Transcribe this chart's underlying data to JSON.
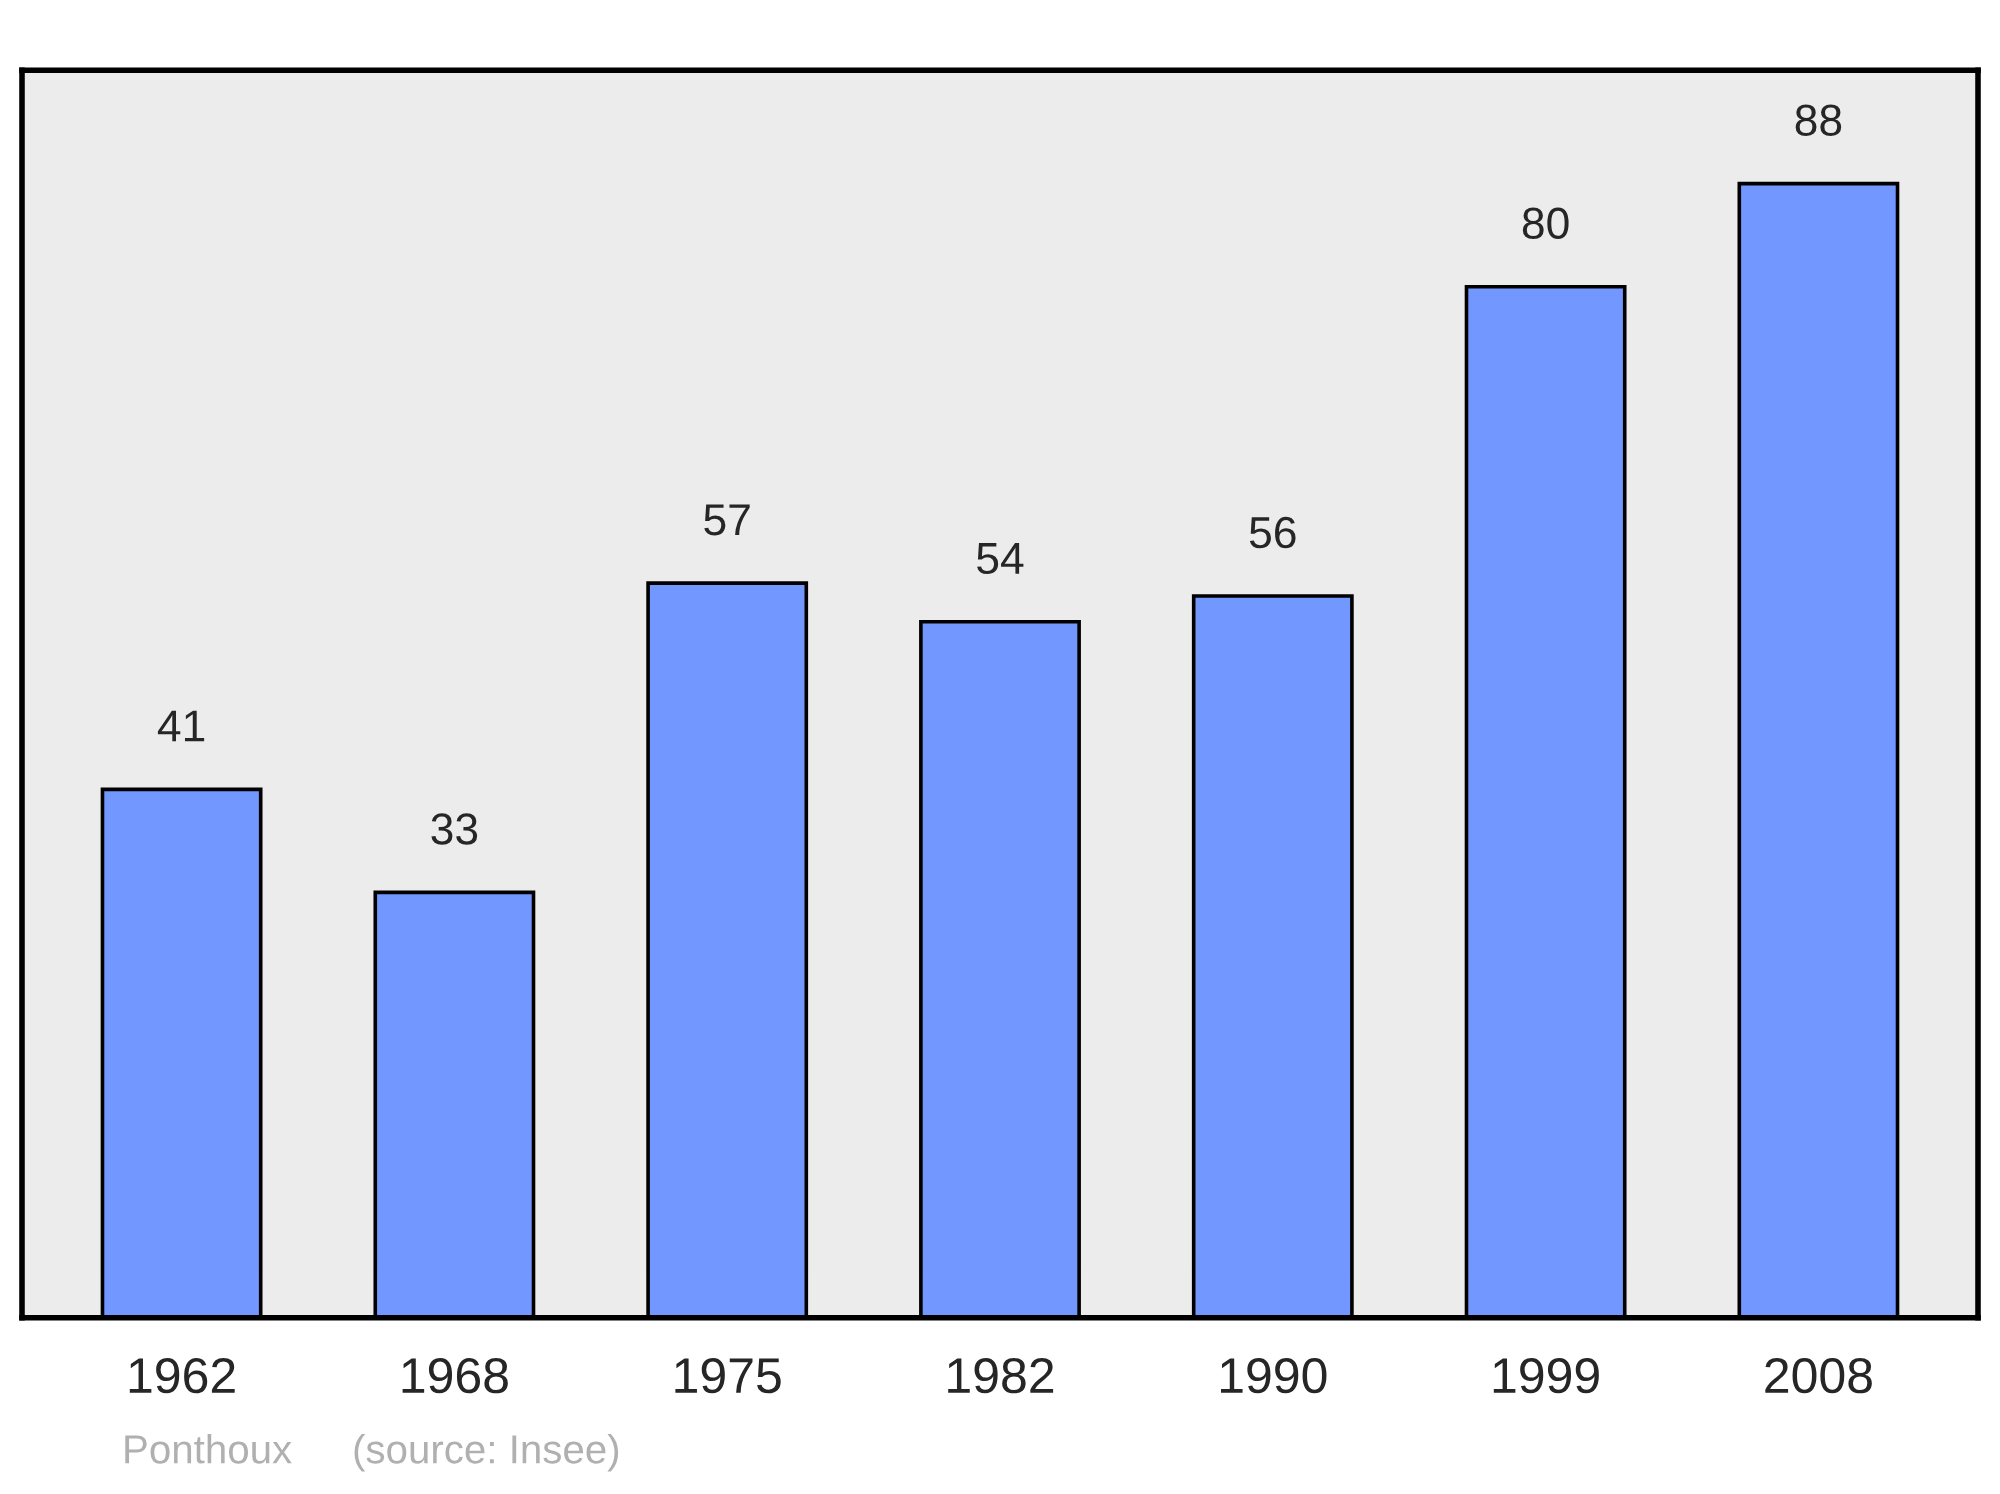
{
  "chart_data": {
    "type": "bar",
    "categories": [
      "1962",
      "1968",
      "1975",
      "1982",
      "1990",
      "1999",
      "2008"
    ],
    "values": [
      41,
      33,
      57,
      54,
      56,
      80,
      88
    ],
    "color": "#7298ff",
    "data_labels": true,
    "tick_labels": "x",
    "annotations": [
      "Ponthoux",
      "(source: Insee)"
    ]
  }
}
